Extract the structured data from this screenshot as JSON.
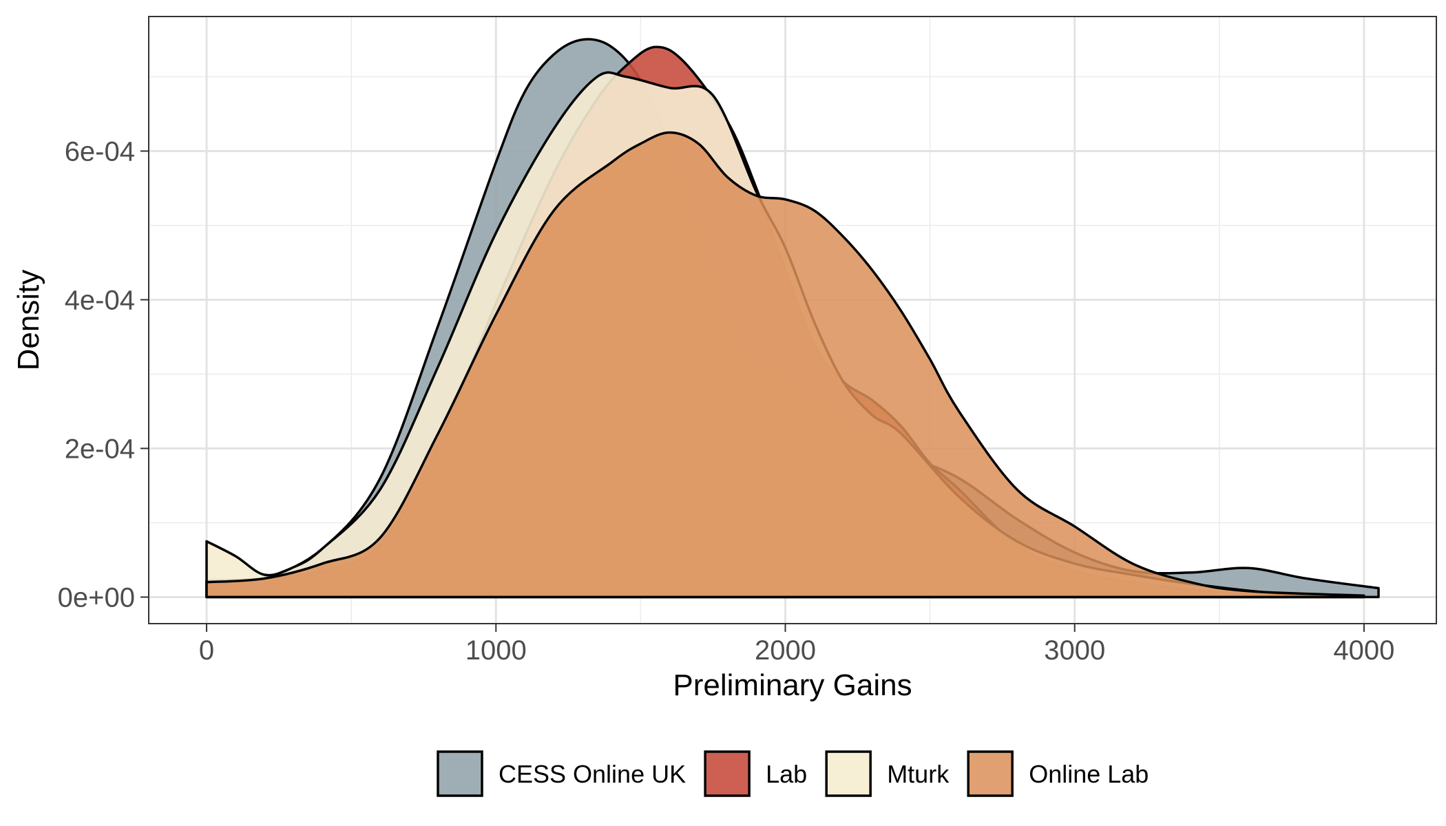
{
  "chart_data": {
    "type": "area",
    "subtype": "density",
    "xlabel": "Preliminary Gains",
    "ylabel": "Density",
    "xlim": [
      -200,
      4250
    ],
    "ylim": [
      -3.57e-05,
      0.000781
    ],
    "x_ticks": [
      0,
      1000,
      2000,
      3000,
      4000
    ],
    "x_tick_labels": [
      "0",
      "1000",
      "2000",
      "3000",
      "4000"
    ],
    "y_ticks": [
      0,
      0.0002,
      0.0004,
      0.0006
    ],
    "y_tick_labels": [
      "0e+00",
      "2e-04",
      "4e-04",
      "6e-04"
    ],
    "grid": true,
    "legend_position": "bottom",
    "series": [
      {
        "name": "CESS Online UK",
        "color": "#95A5AC",
        "opacity": 0.9,
        "points": [
          [
            0,
            1e-05
          ],
          [
            200,
            2.5e-05
          ],
          [
            400,
            6.5e-05
          ],
          [
            600,
            0.00016
          ],
          [
            800,
            0.000365
          ],
          [
            1000,
            0.000585
          ],
          [
            1100,
            0.00068
          ],
          [
            1200,
            0.00073
          ],
          [
            1300,
            0.00075
          ],
          [
            1400,
            0.00074
          ],
          [
            1500,
            0.000695
          ],
          [
            1600,
            0.000605
          ],
          [
            1700,
            0.000475
          ],
          [
            1800,
            0.00037
          ],
          [
            1900,
            0.00032
          ],
          [
            2000,
            0.00029
          ],
          [
            2200,
            0.00024
          ],
          [
            2400,
            0.000195
          ],
          [
            2600,
            0.00016
          ],
          [
            2800,
            0.000105
          ],
          [
            3000,
            6e-05
          ],
          [
            3200,
            3.5e-05
          ],
          [
            3400,
            3.3e-05
          ],
          [
            3600,
            3.9e-05
          ],
          [
            3800,
            2.5e-05
          ],
          [
            4050,
            1.2e-05
          ]
        ]
      },
      {
        "name": "Lab",
        "color": "#C84F40",
        "opacity": 0.9,
        "points": [
          [
            0,
            2.2e-05
          ],
          [
            200,
            2.5e-05
          ],
          [
            400,
            3.5e-05
          ],
          [
            600,
            7e-05
          ],
          [
            800,
            0.000205
          ],
          [
            1000,
            0.000395
          ],
          [
            1200,
            0.00057
          ],
          [
            1350,
            0.00067
          ],
          [
            1450,
            0.000715
          ],
          [
            1550,
            0.00074
          ],
          [
            1650,
            0.00072
          ],
          [
            1800,
            0.00064
          ],
          [
            1900,
            0.00055
          ],
          [
            2000,
            0.00044
          ],
          [
            2100,
            0.00034
          ],
          [
            2200,
            0.00029
          ],
          [
            2300,
            0.000265
          ],
          [
            2400,
            0.00023
          ],
          [
            2500,
            0.00018
          ],
          [
            2600,
            0.000145
          ],
          [
            2800,
            7e-05
          ],
          [
            3000,
            3.5e-05
          ],
          [
            3200,
            2e-05
          ],
          [
            3400,
            1e-05
          ],
          [
            3600,
            4e-06
          ],
          [
            4000,
            5e-07
          ]
        ]
      },
      {
        "name": "Mturk",
        "color": "#F6ECD2",
        "opacity": 0.9,
        "points": [
          [
            0,
            7.5e-05
          ],
          [
            100,
            5.5e-05
          ],
          [
            200,
            3e-05
          ],
          [
            300,
            4e-05
          ],
          [
            400,
            6.5e-05
          ],
          [
            600,
            0.000145
          ],
          [
            800,
            0.00031
          ],
          [
            1000,
            0.00049
          ],
          [
            1200,
            0.00063
          ],
          [
            1350,
            0.0007
          ],
          [
            1450,
            0.0007
          ],
          [
            1600,
            0.000685
          ],
          [
            1750,
            0.000675
          ],
          [
            1900,
            0.000545
          ],
          [
            2000,
            0.00047
          ],
          [
            2100,
            0.00037
          ],
          [
            2200,
            0.00029
          ],
          [
            2300,
            0.000245
          ],
          [
            2400,
            0.00022
          ],
          [
            2600,
            0.000135
          ],
          [
            2800,
            7.5e-05
          ],
          [
            3000,
            4.5e-05
          ],
          [
            3200,
            3e-05
          ],
          [
            3400,
            1.8e-05
          ],
          [
            3700,
            5e-06
          ],
          [
            4000,
            1e-06
          ]
        ]
      },
      {
        "name": "Online Lab",
        "color": "#DB8F58",
        "opacity": 0.85,
        "points": [
          [
            0,
            2e-05
          ],
          [
            200,
            2.5e-05
          ],
          [
            400,
            4.5e-05
          ],
          [
            600,
            8e-05
          ],
          [
            800,
            0.00022
          ],
          [
            1000,
            0.00038
          ],
          [
            1200,
            0.00052
          ],
          [
            1400,
            0.000585
          ],
          [
            1500,
            0.00061
          ],
          [
            1600,
            0.000625
          ],
          [
            1700,
            0.00061
          ],
          [
            1800,
            0.000565
          ],
          [
            1900,
            0.00054
          ],
          [
            2000,
            0.000535
          ],
          [
            2100,
            0.00052
          ],
          [
            2200,
            0.000485
          ],
          [
            2300,
            0.00044
          ],
          [
            2400,
            0.000385
          ],
          [
            2500,
            0.00032
          ],
          [
            2600,
            0.00025
          ],
          [
            2800,
            0.000145
          ],
          [
            3000,
            9.5e-05
          ],
          [
            3200,
            4.5e-05
          ],
          [
            3400,
            2e-05
          ],
          [
            3600,
            8e-06
          ],
          [
            4000,
            2e-06
          ]
        ]
      }
    ]
  }
}
